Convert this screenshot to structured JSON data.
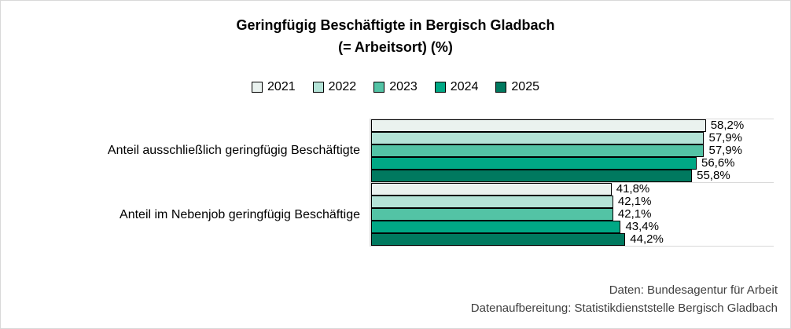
{
  "chart_data": {
    "type": "bar",
    "orientation": "horizontal",
    "title_lines": [
      "Geringfügig Beschäftigte in Bergisch Gladbach",
      "(= Arbeitsort) (%)"
    ],
    "categories": [
      "Anteil ausschließlich geringfügig Beschäftigte",
      "Anteil im Nebenjob geringfügig Beschäftige"
    ],
    "series": [
      {
        "name": "2021",
        "color": "#EAF2EF",
        "values": [
          58.2,
          41.8
        ],
        "labels": [
          "58,2%",
          "41,8%"
        ]
      },
      {
        "name": "2022",
        "color": "#B4E3D7",
        "values": [
          57.9,
          42.1
        ],
        "labels": [
          "57,9%",
          "42,1%"
        ]
      },
      {
        "name": "2023",
        "color": "#53C3A5",
        "values": [
          57.9,
          42.1
        ],
        "labels": [
          "57,9%",
          "42,1%"
        ]
      },
      {
        "name": "2024",
        "color": "#00A885",
        "values": [
          56.6,
          43.4
        ],
        "labels": [
          "56,6%",
          "43,4%"
        ]
      },
      {
        "name": "2025",
        "color": "#00795F",
        "values": [
          55.8,
          44.2
        ],
        "labels": [
          "55,8%",
          "44,2%"
        ]
      }
    ],
    "xlim": [
      0,
      70
    ],
    "value_labels_visible": true,
    "legend_position": "top",
    "grid": "category-boundaries",
    "gridline_color": "#D9D9D9",
    "axis_color": "#D9D9D9",
    "bar_border_color": "#000000"
  },
  "footer": {
    "line1": "Daten: Bundesagentur für Arbeit",
    "line2": "Datenaufbereitung: Statistikdienststelle Bergisch Gladbach"
  }
}
